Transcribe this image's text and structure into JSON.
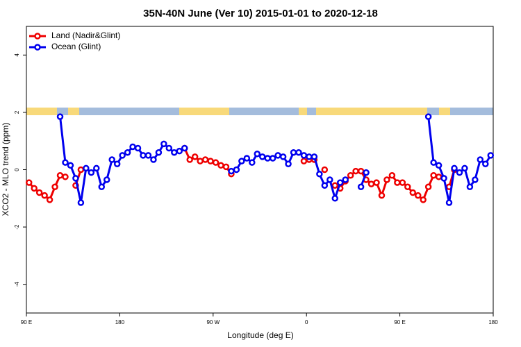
{
  "chart_data": {
    "type": "line",
    "title": "35N-40N June (Ver 10)   2015-01-01 to 2020-12-18",
    "x_label": "Longitude (deg E)",
    "y_label": "XCO2 - MLO trend (ppm)",
    "xlim": [
      90,
      540
    ],
    "ylim": [
      -5,
      5
    ],
    "xticks": [
      {
        "value": 90,
        "label": "90 E"
      },
      {
        "value": 180,
        "label": "180"
      },
      {
        "value": 270,
        "label": "90 W"
      },
      {
        "value": 360,
        "label": "0"
      },
      {
        "value": 450,
        "label": "90 E"
      },
      {
        "value": 540,
        "label": "180"
      }
    ],
    "yticks": [
      -4,
      -2,
      0,
      2,
      4
    ],
    "legend": "top-left",
    "x": [
      92.5,
      97.5,
      102.5,
      107.5,
      112.5,
      117.5,
      122.5,
      127.5,
      132.5,
      137.5,
      142.5,
      147.5,
      152.5,
      157.5,
      162.5,
      167.5,
      172.5,
      177.5,
      182.5,
      187.5,
      192.5,
      197.5,
      202.5,
      207.5,
      212.5,
      217.5,
      222.5,
      227.5,
      232.5,
      237.5,
      242.5,
      247.5,
      252.5,
      257.5,
      262.5,
      267.5,
      272.5,
      277.5,
      282.5,
      287.5,
      292.5,
      297.5,
      302.5,
      307.5,
      312.5,
      317.5,
      322.5,
      327.5,
      332.5,
      337.5,
      342.5,
      347.5,
      352.5,
      357.5,
      362.5,
      367.5,
      372.5,
      377.5,
      382.5,
      387.5,
      392.5,
      397.5,
      402.5,
      407.5,
      412.5,
      417.5,
      422.5,
      427.5,
      432.5,
      437.5,
      442.5,
      447.5,
      452.5,
      457.5,
      462.5,
      467.5,
      472.5,
      477.5,
      482.5,
      487.5,
      492.5,
      497.5,
      502.5,
      507.5,
      512.5,
      517.5,
      522.5,
      527.5,
      532.5,
      537.5
    ],
    "series": [
      {
        "name": "Land (Nadir&Glint)",
        "color": "#ee0000",
        "values": [
          -0.45,
          -0.65,
          -0.8,
          -0.9,
          -1.05,
          -0.6,
          -0.2,
          -0.25,
          null,
          -0.55,
          0.0,
          null,
          null,
          null,
          null,
          null,
          null,
          null,
          null,
          null,
          null,
          null,
          null,
          null,
          null,
          null,
          null,
          null,
          null,
          null,
          0.75,
          0.35,
          0.45,
          0.3,
          0.35,
          0.3,
          0.25,
          0.15,
          0.1,
          -0.15,
          null,
          null,
          null,
          null,
          null,
          null,
          null,
          null,
          null,
          null,
          null,
          null,
          null,
          0.3,
          0.35,
          0.35,
          null,
          0.0,
          null,
          -0.55,
          -0.65,
          -0.4,
          -0.2,
          -0.05,
          -0.05,
          -0.35,
          -0.5,
          -0.45,
          -0.9,
          -0.35,
          -0.2,
          -0.45,
          -0.45,
          -0.6,
          -0.8,
          -0.9,
          -1.05,
          -0.6,
          -0.2,
          -0.25,
          null,
          -0.6,
          0.0,
          null,
          null,
          null,
          null,
          null,
          null,
          null
        ]
      },
      {
        "name": "Ocean (Glint)",
        "color": "#0000ee",
        "values": [
          null,
          null,
          null,
          null,
          null,
          null,
          1.85,
          0.25,
          0.15,
          -0.3,
          -1.15,
          0.05,
          -0.1,
          0.05,
          -0.6,
          -0.35,
          0.35,
          0.2,
          0.5,
          0.6,
          0.8,
          0.75,
          0.5,
          0.5,
          0.35,
          0.6,
          0.9,
          0.75,
          0.6,
          0.65,
          0.75,
          null,
          null,
          null,
          null,
          null,
          null,
          null,
          null,
          -0.05,
          0.0,
          0.3,
          0.4,
          0.25,
          0.55,
          0.45,
          0.4,
          0.4,
          0.5,
          0.45,
          0.2,
          0.6,
          0.6,
          0.5,
          0.45,
          0.45,
          -0.15,
          -0.55,
          -0.35,
          -1.0,
          -0.45,
          -0.35,
          null,
          null,
          -0.6,
          -0.1,
          null,
          null,
          null,
          null,
          null,
          null,
          null,
          null,
          null,
          null,
          null,
          1.85,
          0.25,
          0.15,
          -0.3,
          -1.15,
          0.05,
          -0.1,
          0.05,
          -0.6,
          -0.35,
          0.35,
          0.2,
          0.5
        ]
      }
    ]
  }
}
